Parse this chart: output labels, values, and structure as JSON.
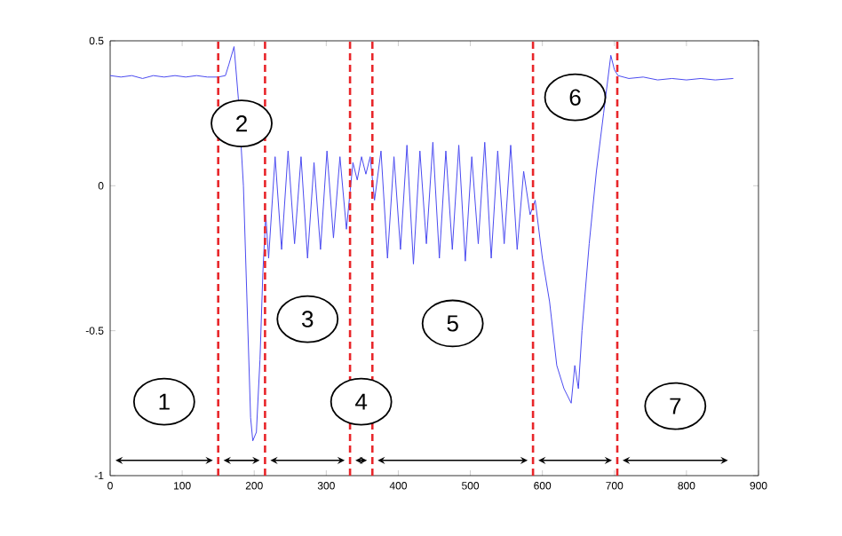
{
  "chart_data": {
    "type": "line",
    "x": [
      0,
      15,
      30,
      45,
      60,
      75,
      90,
      105,
      120,
      135,
      150,
      160,
      165,
      172,
      178,
      185,
      190,
      195,
      198,
      203,
      208,
      212,
      216,
      220,
      229,
      238,
      247,
      256,
      265,
      274,
      283,
      292,
      301,
      310,
      319,
      328,
      337,
      343,
      349,
      355,
      361,
      367,
      376,
      385,
      394,
      403,
      412,
      421,
      430,
      439,
      448,
      457,
      466,
      475,
      484,
      493,
      502,
      511,
      520,
      529,
      538,
      547,
      556,
      565,
      574,
      583,
      590,
      600,
      610,
      620,
      630,
      640,
      645,
      650,
      655,
      665,
      675,
      685,
      695,
      700,
      705,
      720,
      740,
      760,
      780,
      800,
      820,
      840,
      865
    ],
    "series": [
      {
        "color": "#4a4af0",
        "values": [
          0.38,
          0.375,
          0.38,
          0.37,
          0.38,
          0.375,
          0.38,
          0.375,
          0.38,
          0.375,
          0.375,
          0.38,
          0.42,
          0.48,
          0.3,
          0.0,
          -0.4,
          -0.8,
          -0.88,
          -0.85,
          -0.6,
          -0.3,
          -0.1,
          -0.25,
          0.1,
          -0.22,
          0.12,
          -0.2,
          0.1,
          -0.25,
          0.08,
          -0.22,
          0.12,
          -0.18,
          0.1,
          -0.15,
          0.08,
          0.02,
          0.1,
          0.04,
          0.1,
          -0.05,
          0.12,
          -0.25,
          0.1,
          -0.22,
          0.14,
          -0.27,
          0.12,
          -0.2,
          0.15,
          -0.25,
          0.12,
          -0.22,
          0.14,
          -0.26,
          0.1,
          -0.2,
          0.15,
          -0.25,
          0.12,
          -0.2,
          0.14,
          -0.22,
          0.05,
          -0.1,
          -0.05,
          -0.25,
          -0.4,
          -0.62,
          -0.7,
          -0.75,
          -0.62,
          -0.7,
          -0.5,
          -0.2,
          0.05,
          0.25,
          0.45,
          0.4,
          0.38,
          0.37,
          0.375,
          0.365,
          0.37,
          0.365,
          0.37,
          0.365,
          0.37
        ]
      }
    ],
    "xlim": [
      0,
      900
    ],
    "ylim": [
      -1,
      0.5
    ],
    "xticks": [
      0,
      100,
      200,
      300,
      400,
      500,
      600,
      700,
      800,
      900
    ],
    "yticks": [
      -1,
      -0.5,
      0,
      0.5
    ],
    "ref_lines": [
      {
        "axis": "x",
        "value": 150,
        "color": "#e8262a",
        "line_style": "dashed"
      },
      {
        "axis": "x",
        "value": 215,
        "color": "#e8262a",
        "line_style": "dashed"
      },
      {
        "axis": "x",
        "value": 333,
        "color": "#e8262a",
        "line_style": "dashed"
      },
      {
        "axis": "x",
        "value": 364,
        "color": "#e8262a",
        "line_style": "dashed"
      },
      {
        "axis": "x",
        "value": 587,
        "color": "#e8262a",
        "line_style": "dashed"
      },
      {
        "axis": "x",
        "value": 704,
        "color": "#e8262a",
        "line_style": "dashed"
      }
    ],
    "annotations": [
      "1",
      "2",
      "3",
      "4",
      "5",
      "6",
      "7"
    ],
    "grid": false
  }
}
